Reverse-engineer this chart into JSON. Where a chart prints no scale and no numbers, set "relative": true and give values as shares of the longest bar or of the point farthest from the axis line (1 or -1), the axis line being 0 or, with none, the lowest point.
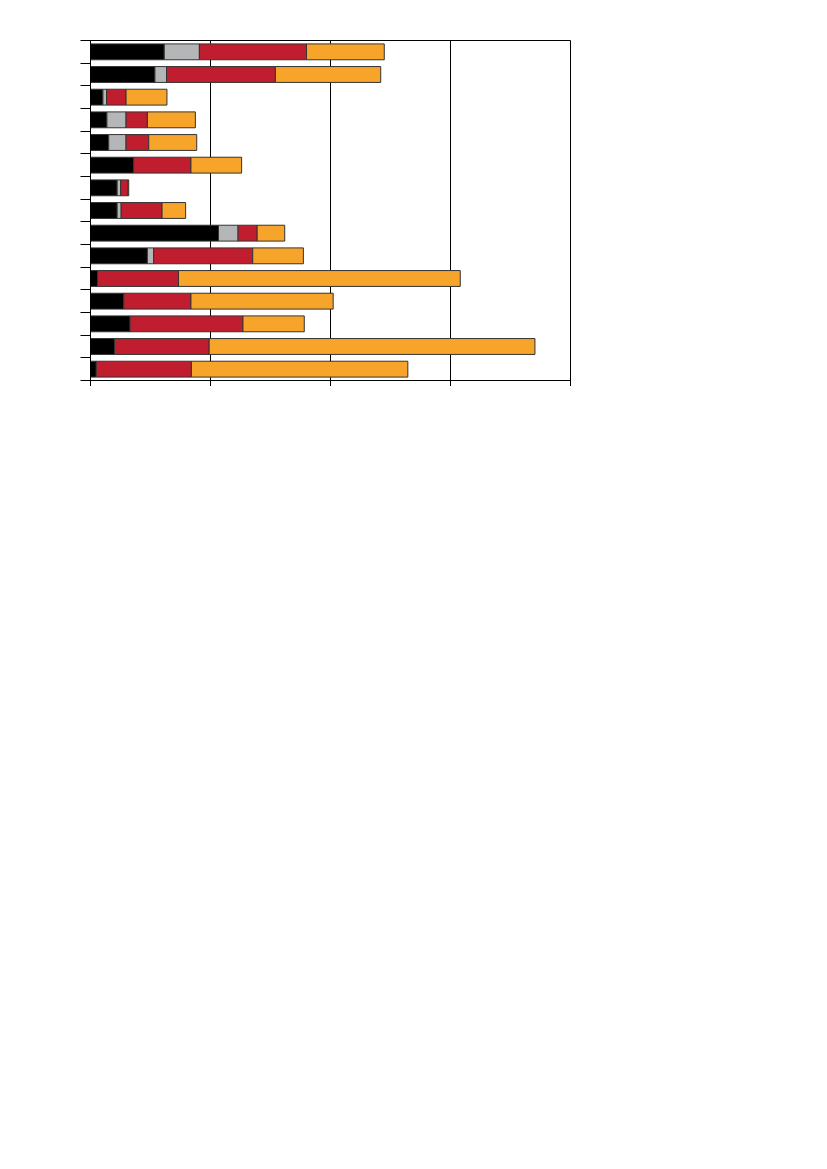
{
  "chart_data": {
    "type": "bar",
    "orientation": "horizontal",
    "stacked": true,
    "relative": true,
    "grid": "x",
    "categories": [
      null,
      null,
      null,
      null,
      null,
      null,
      null,
      null,
      null,
      null,
      null,
      null,
      null,
      null,
      null
    ],
    "series": [
      {
        "color": "#000000",
        "values": [
          0.166,
          0.145,
          0.028,
          0.037,
          0.041,
          0.097,
          0.06,
          0.06,
          0.288,
          0.128,
          0.016,
          0.075,
          0.089,
          0.054,
          0.013
        ]
      },
      {
        "color": "#b5b6b8",
        "values": [
          0.079,
          0.026,
          0.008,
          0.043,
          0.039,
          0,
          0.008,
          0.009,
          0.044,
          0.014,
          0,
          0,
          0,
          0,
          0
        ]
      },
      {
        "color": "#c01e2e",
        "values": [
          0.241,
          0.245,
          0.044,
          0.048,
          0.051,
          0.129,
          0.016,
          0.092,
          0.043,
          0.223,
          0.182,
          0.151,
          0.254,
          0.213,
          0.214
        ]
      },
      {
        "color": "#f7a52a",
        "values": [
          0.175,
          0.237,
          0.092,
          0.108,
          0.108,
          0.114,
          0.002,
          0.053,
          0.062,
          0.114,
          0.634,
          0.32,
          0.138,
          0.733,
          0.487
        ]
      }
    ]
  }
}
